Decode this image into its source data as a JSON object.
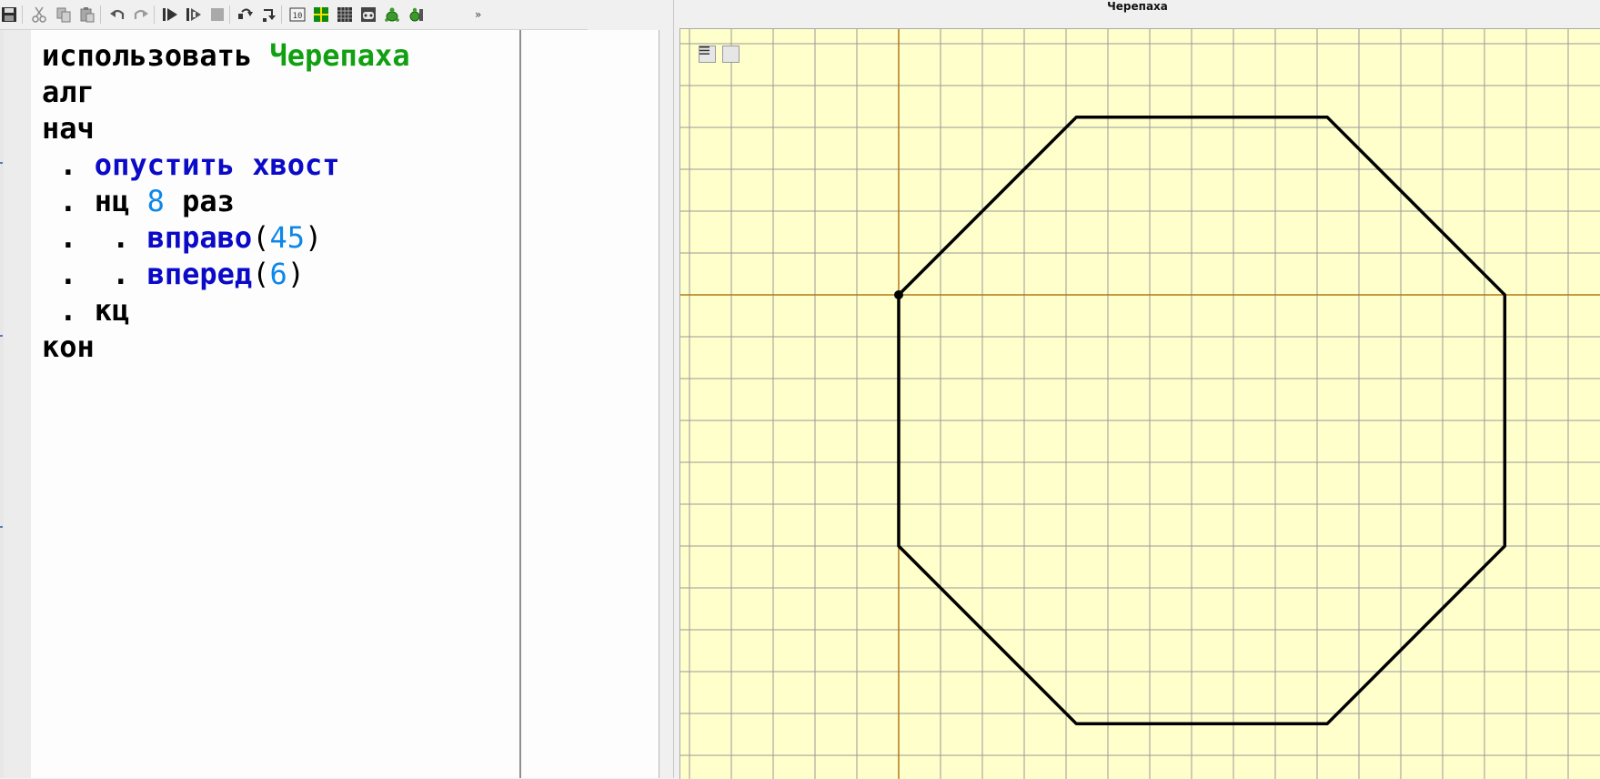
{
  "toolbar": {
    "buttons": [
      {
        "name": "save-icon"
      },
      {
        "name": "cut-icon"
      },
      {
        "name": "copy-icon"
      },
      {
        "name": "paste-icon"
      },
      {
        "name": "undo-icon"
      },
      {
        "name": "redo-icon"
      },
      {
        "name": "run-icon"
      },
      {
        "name": "step-run-icon"
      },
      {
        "name": "stop-icon"
      },
      {
        "name": "step-over-icon"
      },
      {
        "name": "step-into-icon"
      },
      {
        "name": "counter-window-icon"
      },
      {
        "name": "robot-field-icon"
      },
      {
        "name": "draw-grid-icon"
      },
      {
        "name": "robot-game-icon"
      },
      {
        "name": "turtle-icon"
      },
      {
        "name": "turtle-window-icon"
      }
    ],
    "more": "»"
  },
  "editor": {
    "lines": [
      {
        "indent": "",
        "parts": [
          {
            "t": "использовать ",
            "c": "plain"
          },
          {
            "t": "Черепаха",
            "c": "green"
          }
        ]
      },
      {
        "indent": "",
        "parts": [
          {
            "t": "алг",
            "c": "plain"
          }
        ]
      },
      {
        "indent": "",
        "parts": [
          {
            "t": "нач",
            "c": "plain"
          }
        ]
      },
      {
        "indent": " . ",
        "parts": [
          {
            "t": "опустить хвост",
            "c": "blue"
          }
        ]
      },
      {
        "indent": " . ",
        "parts": [
          {
            "t": "нц ",
            "c": "plain"
          },
          {
            "t": "8",
            "c": "num"
          },
          {
            "t": " раз",
            "c": "plain"
          }
        ]
      },
      {
        "indent": " .  . ",
        "parts": [
          {
            "t": "вправо",
            "c": "blue"
          },
          {
            "t": "(",
            "c": "paren"
          },
          {
            "t": "45",
            "c": "num"
          },
          {
            "t": ")",
            "c": "paren"
          }
        ]
      },
      {
        "indent": " .  . ",
        "parts": [
          {
            "t": "вперед",
            "c": "blue"
          },
          {
            "t": "(",
            "c": "paren"
          },
          {
            "t": "6",
            "c": "num"
          },
          {
            "t": ")",
            "c": "paren"
          }
        ]
      },
      {
        "indent": " . ",
        "parts": [
          {
            "t": "кц",
            "c": "plain"
          }
        ]
      },
      {
        "indent": "",
        "parts": [
          {
            "t": "кон",
            "c": "plain"
          }
        ]
      }
    ]
  },
  "turtle_window": {
    "title": "Черепаха",
    "background_color": "#ffffcc",
    "grid_color": "#9a9a9a",
    "axis_color": "#b07818",
    "path_color": "#000000",
    "turtle_path": {
      "start": [
        0,
        0
      ],
      "repeat": 8,
      "turn_right_deg": 45,
      "step": 6
    }
  }
}
